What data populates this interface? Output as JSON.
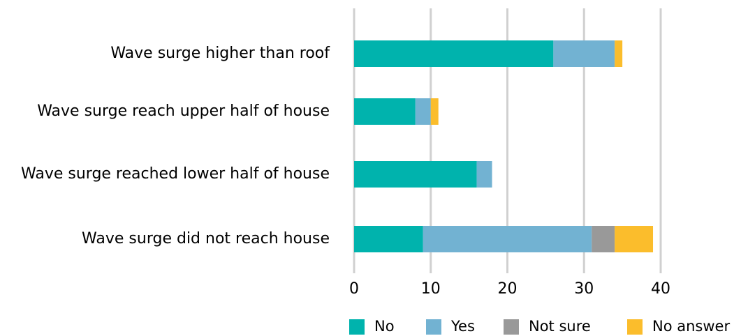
{
  "chart_data": {
    "type": "stacked_barh",
    "categories": [
      "Wave surge higher than roof",
      "Wave surge reach upper half of house",
      "Wave surge reached lower half of house",
      "Wave surge did not reach house"
    ],
    "series": [
      {
        "name": "No",
        "color": "#00b3ad",
        "values": [
          26,
          8,
          16,
          9
        ]
      },
      {
        "name": "Yes",
        "color": "#72b2d2",
        "values": [
          8,
          2,
          2,
          22
        ]
      },
      {
        "name": "Not sure",
        "color": "#999999",
        "values": [
          0,
          0,
          0,
          3
        ]
      },
      {
        "name": "No answer",
        "color": "#fbbd2c",
        "values": [
          1,
          1,
          0,
          5
        ]
      }
    ],
    "xlim": [
      0,
      40
    ],
    "xticks": [
      0,
      10,
      20,
      30,
      40
    ],
    "grid": true,
    "legend": "bottom"
  }
}
